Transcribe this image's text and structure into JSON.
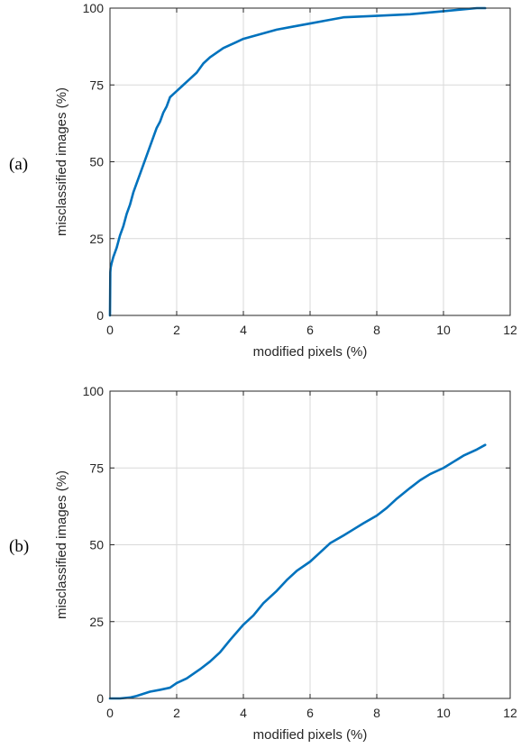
{
  "colors": {
    "series": "#0072BD",
    "axis": "#262626",
    "grid": "#d9d9d9"
  },
  "chart_data": [
    {
      "type": "line",
      "panel_label": "(a)",
      "title": "",
      "xlabel": "modified pixels (%)",
      "ylabel": "misclassified images (%)",
      "xlim": [
        0,
        12
      ],
      "ylim": [
        0,
        100
      ],
      "xticks": [
        0,
        2,
        4,
        6,
        8,
        10,
        12
      ],
      "yticks": [
        0,
        25,
        50,
        75,
        100
      ],
      "grid": true,
      "series": [
        {
          "x": [
            0,
            0.01,
            0.02,
            0.05,
            0.1,
            0.2,
            0.3,
            0.4,
            0.5,
            0.6,
            0.7,
            0.8,
            0.9,
            1.0,
            1.1,
            1.2,
            1.3,
            1.4,
            1.5,
            1.6,
            1.7,
            1.8,
            1.9,
            2.0,
            2.2,
            2.4,
            2.6,
            2.8,
            3.0,
            3.2,
            3.4,
            3.6,
            3.8,
            4.0,
            4.5,
            5.0,
            5.5,
            6.0,
            6.5,
            7.0,
            8.0,
            9.0,
            10.0,
            10.5,
            11.0,
            11.25
          ],
          "y": [
            0,
            14,
            15.5,
            17,
            19,
            22,
            26,
            29,
            33,
            36,
            40,
            43,
            46,
            49,
            52,
            55,
            58,
            61,
            63,
            66,
            68,
            71,
            72,
            73,
            75,
            77,
            79,
            82,
            84,
            85.5,
            87,
            88,
            89,
            90,
            91.5,
            93,
            94,
            95,
            96,
            97,
            97.5,
            98,
            99,
            99.5,
            100,
            100
          ]
        }
      ]
    },
    {
      "type": "line",
      "panel_label": "(b)",
      "title": "",
      "xlabel": "modified pixels (%)",
      "ylabel": "misclassified images (%)",
      "xlim": [
        0,
        12
      ],
      "ylim": [
        0,
        100
      ],
      "xticks": [
        0,
        2,
        4,
        6,
        8,
        10,
        12
      ],
      "yticks": [
        0,
        25,
        50,
        75,
        100
      ],
      "grid": true,
      "series": [
        {
          "x": [
            0,
            0.3,
            0.6,
            0.8,
            1.0,
            1.2,
            1.5,
            1.8,
            2.0,
            2.3,
            2.5,
            2.7,
            3.0,
            3.3,
            3.6,
            4.0,
            4.3,
            4.6,
            5.0,
            5.3,
            5.6,
            6.0,
            6.3,
            6.6,
            7.0,
            7.3,
            7.6,
            8.0,
            8.3,
            8.6,
            9.0,
            9.3,
            9.6,
            10.0,
            10.3,
            10.6,
            11.0,
            11.25
          ],
          "y": [
            0,
            0,
            0.3,
            0.8,
            1.5,
            2.2,
            2.8,
            3.5,
            5,
            6.5,
            8,
            9.5,
            12,
            15,
            19,
            24,
            27,
            31,
            35,
            38.5,
            41.5,
            44.5,
            47.5,
            50.5,
            53,
            55,
            57,
            59.5,
            62,
            65,
            68.5,
            71,
            73,
            75,
            77,
            79,
            81,
            82.5
          ]
        }
      ]
    }
  ]
}
